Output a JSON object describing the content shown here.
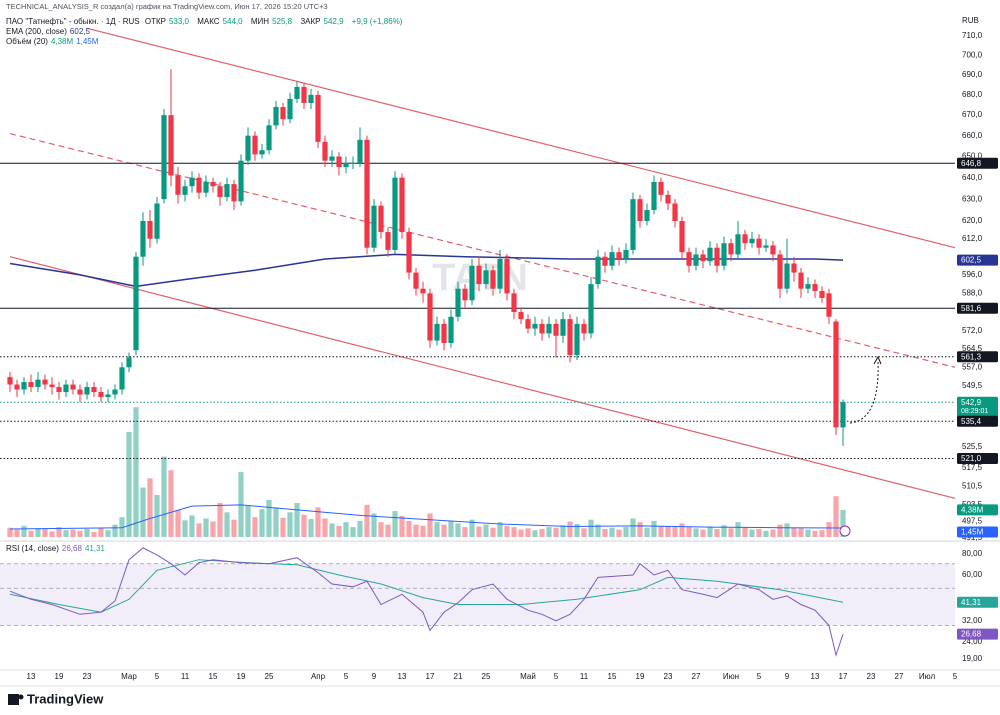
{
  "header": {
    "credit": "TECHNICAL_ANALYSIS_R создал(а) график на TradingView.com, Июн 17, 2026 15:20 UTC+3",
    "symbol": "ПАО \"Татнефть\" - обыкн. · 1Д · RUS",
    "ohlc": [
      {
        "label": "ОТКР",
        "value": "533,0"
      },
      {
        "label": "МАКС",
        "value": "544,0"
      },
      {
        "label": "МИН",
        "value": "525,8"
      },
      {
        "label": "ЗАКР",
        "value": "542,9"
      }
    ],
    "change": "+9,9 (+1,86%)",
    "currency": "RUB",
    "watermark": "TATN",
    "countdown": "08:29:01",
    "brand": "TradingView"
  },
  "chart_data": [
    {
      "type": "candlestick",
      "categories": [
        null,
        null,
        null,
        "13",
        null,
        null,
        null,
        "19",
        null,
        null,
        null,
        "23",
        null,
        null,
        null,
        null,
        null,
        "Мар",
        null,
        null,
        null,
        "5",
        null,
        null,
        null,
        "11",
        null,
        null,
        null,
        "15",
        null,
        null,
        null,
        "19",
        null,
        null,
        null,
        "25",
        null,
        null,
        null,
        null,
        null,
        null,
        "Апр",
        null,
        null,
        null,
        "5",
        null,
        null,
        null,
        "9",
        null,
        null,
        null,
        "13",
        null,
        null,
        null,
        "17",
        null,
        null,
        null,
        "21",
        null,
        null,
        null,
        "25",
        null,
        null,
        null,
        null,
        null,
        "Май",
        null,
        null,
        null,
        "5",
        null,
        null,
        null,
        "11",
        null,
        null,
        null,
        "15",
        null,
        null,
        null,
        "19",
        null,
        null,
        null,
        "23",
        null,
        null,
        null,
        "27",
        null,
        null,
        null,
        null,
        "Июн",
        null,
        null,
        null,
        "5",
        null,
        null,
        null,
        "9",
        null,
        null,
        null,
        "13",
        null,
        null,
        null,
        "17",
        null,
        null,
        null,
        "23",
        null,
        null,
        null,
        "27",
        null,
        null,
        null,
        "Июл",
        null,
        null,
        null,
        "5"
      ],
      "open": [
        553,
        550,
        548,
        551,
        549,
        552,
        550,
        549,
        547,
        550,
        548,
        546,
        549,
        547,
        545,
        546,
        548,
        557,
        564,
        604,
        620,
        612,
        630,
        670,
        641,
        632,
        636,
        640,
        633,
        638,
        636,
        631,
        637,
        629,
        648,
        660,
        651,
        653,
        665,
        674,
        668,
        678,
        684,
        676,
        680,
        657,
        648,
        650,
        645,
        647,
        647,
        658,
        608,
        627,
        615,
        607,
        640,
        615,
        597,
        590,
        588,
        568,
        575,
        567,
        578,
        590,
        585,
        600,
        592,
        598,
        590,
        603,
        588,
        580,
        577,
        573,
        575,
        571,
        575,
        570,
        577,
        562,
        575,
        571,
        592,
        604,
        600,
        606,
        603,
        607,
        630,
        620,
        625,
        638,
        632,
        628,
        620,
        606,
        600,
        605,
        602,
        608,
        600,
        610,
        605,
        614,
        610,
        612,
        608,
        609,
        605,
        590,
        601,
        597,
        590,
        592,
        589,
        588,
        576,
        533,
        null,
        null,
        null,
        null,
        null,
        null,
        null,
        null,
        null,
        null,
        null,
        null,
        null,
        null,
        null,
        null
      ],
      "high": [
        555,
        552,
        553,
        554,
        555,
        554,
        553,
        551,
        552,
        552,
        550,
        551,
        551,
        549,
        548,
        550,
        559,
        563,
        606,
        624,
        625,
        631,
        673,
        693,
        645,
        639,
        643,
        642,
        641,
        640,
        638,
        640,
        639,
        651,
        664,
        662,
        656,
        668,
        677,
        676,
        681,
        687,
        686,
        683,
        682,
        660,
        653,
        652,
        650,
        650,
        664,
        660,
        630,
        629,
        617,
        643,
        642,
        617,
        599,
        593,
        590,
        578,
        577,
        581,
        593,
        592,
        603,
        604,
        601,
        600,
        607,
        605,
        590,
        582,
        579,
        578,
        577,
        578,
        577,
        580,
        579,
        578,
        577,
        595,
        607,
        606,
        609,
        608,
        610,
        633,
        632,
        628,
        641,
        640,
        634,
        630,
        622,
        608,
        608,
        607,
        611,
        610,
        613,
        612,
        620,
        616,
        615,
        614,
        612,
        611,
        607,
        612,
        604,
        599,
        595,
        594,
        591,
        590,
        577,
        544,
        null,
        null,
        null,
        null,
        null,
        null,
        null,
        null,
        null,
        null,
        null,
        null,
        null,
        null,
        null,
        null
      ],
      "low": [
        547,
        545,
        546,
        547,
        547,
        548,
        546,
        544,
        545,
        546,
        543,
        544,
        545,
        543,
        543,
        544,
        546,
        555,
        562,
        600,
        608,
        610,
        628,
        636,
        628,
        629,
        633,
        630,
        631,
        633,
        627,
        629,
        625,
        627,
        646,
        648,
        649,
        651,
        663,
        665,
        666,
        676,
        673,
        673,
        654,
        645,
        645,
        641,
        642,
        644,
        645,
        605,
        606,
        612,
        604,
        605,
        612,
        594,
        587,
        584,
        565,
        566,
        564,
        565,
        576,
        582,
        583,
        589,
        590,
        587,
        588,
        585,
        577,
        575,
        571,
        570,
        568,
        569,
        561,
        567,
        559,
        560,
        568,
        569,
        590,
        597,
        598,
        600,
        601,
        605,
        617,
        618,
        623,
        629,
        625,
        617,
        603,
        597,
        598,
        599,
        600,
        597,
        598,
        602,
        603,
        607,
        608,
        605,
        606,
        602,
        586,
        588,
        593,
        586,
        588,
        586,
        584,
        575,
        530,
        525.8,
        null,
        null,
        null,
        null,
        null,
        null,
        null,
        null,
        null,
        null,
        null,
        null,
        null,
        null,
        null,
        null
      ],
      "close": [
        550,
        548,
        551,
        549,
        552,
        550,
        549,
        547,
        550,
        548,
        546,
        549,
        547,
        545,
        546,
        548,
        557,
        561,
        604,
        620,
        612,
        628,
        670,
        641,
        632,
        636,
        640,
        633,
        638,
        636,
        631,
        637,
        629,
        648,
        660,
        651,
        653,
        665,
        674,
        668,
        678,
        684,
        676,
        680,
        657,
        648,
        650,
        645,
        647,
        647,
        658,
        608,
        627,
        615,
        607,
        640,
        615,
        597,
        590,
        588,
        568,
        575,
        567,
        578,
        590,
        585,
        600,
        592,
        598,
        590,
        603,
        588,
        580,
        577,
        573,
        575,
        571,
        575,
        570,
        577,
        562,
        575,
        571,
        592,
        604,
        600,
        606,
        603,
        607,
        630,
        620,
        625,
        638,
        632,
        628,
        620,
        606,
        600,
        605,
        602,
        608,
        600,
        610,
        605,
        614,
        610,
        612,
        608,
        609,
        605,
        590,
        601,
        597,
        590,
        592,
        589,
        586,
        578,
        533,
        542.9,
        null,
        null,
        null,
        null,
        null,
        null,
        null,
        null,
        null,
        null,
        null,
        null,
        null,
        null,
        null,
        null
      ],
      "up_color": "#089981",
      "down_color": "#f23645",
      "ylim": [
        489,
        721
      ],
      "log_scale": true,
      "grid": false,
      "yticks": [
        {
          "value": 710,
          "label": "710,0"
        },
        {
          "value": 700,
          "label": "700,0"
        },
        {
          "value": 690,
          "label": "690,0"
        },
        {
          "value": 680,
          "label": "680,0"
        },
        {
          "value": 670,
          "label": "670,0"
        },
        {
          "value": 660,
          "label": "660,0"
        },
        {
          "value": 650,
          "label": "650,0"
        },
        {
          "value": 640,
          "label": "640,0"
        },
        {
          "value": 630,
          "label": "630,0"
        },
        {
          "value": 620,
          "label": "620,0"
        },
        {
          "value": 612,
          "label": "612,0"
        },
        {
          "value": 596,
          "label": "596,0"
        },
        {
          "value": 588,
          "label": "588,0"
        },
        {
          "value": 572,
          "label": "572,0"
        },
        {
          "value": 564.5,
          "label": "564,5"
        },
        {
          "value": 557,
          "label": "557,0"
        },
        {
          "value": 549.5,
          "label": "549,5"
        },
        {
          "value": 525.5,
          "label": "525,5"
        },
        {
          "value": 517.5,
          "label": "517,5"
        },
        {
          "value": 510.5,
          "label": "510,5"
        },
        {
          "value": 503.5,
          "label": "503,5"
        },
        {
          "value": 497.5,
          "label": "497,5"
        },
        {
          "value": 491.5,
          "label": "491,5"
        }
      ],
      "levels": [
        {
          "value": 646.8,
          "label": "646,8",
          "color": "#131722",
          "style": "solid"
        },
        {
          "value": 581.6,
          "label": "581,6",
          "color": "#131722",
          "style": "solid"
        },
        {
          "value": 561.3,
          "label": "561,3",
          "color": "#131722",
          "style": "dotted"
        },
        {
          "value": 542.9,
          "label": "542,9",
          "color": "#089981",
          "style": "dotted"
        },
        {
          "value": 535.4,
          "label": "535,4",
          "color": "#131722",
          "style": "dotted"
        },
        {
          "value": 521.0,
          "label": "521,0",
          "color": "#131722",
          "style": "dotted"
        }
      ],
      "trendlines": [
        {
          "x": [
            11,
            135
          ],
          "values": [
            714,
            608
          ],
          "color": "#e0606a",
          "style": "solid"
        },
        {
          "x": [
            0,
            135
          ],
          "values": [
            604,
            506
          ],
          "color": "#e0606a",
          "style": "solid"
        },
        {
          "x": [
            0,
            135
          ],
          "values": [
            661,
            557
          ],
          "color": "#e0606a",
          "style": "dashed"
        }
      ],
      "ema": {
        "name": "EMA (200, close)",
        "color": "#283593",
        "value_label": "602,5",
        "x": [
          0,
          10,
          18,
          25,
          35,
          45,
          55,
          65,
          80,
          95,
          105,
          115,
          119
        ],
        "values": [
          601,
          596,
          591,
          594,
          598,
          603,
          605,
          604,
          603,
          603,
          603,
          603,
          602.5
        ]
      },
      "volume": {
        "name": "Объём (20)",
        "vlim": [
          0,
          22
        ],
        "value_label": "4,38M",
        "values": [
          1.5,
          1.2,
          1.8,
          1.0,
          1.4,
          1.3,
          0.9,
          1.6,
          1.1,
          1.2,
          1.0,
          1.3,
          0.8,
          1.5,
          1.1,
          2.0,
          3.2,
          17,
          21,
          8,
          9.5,
          6.8,
          13,
          10.8,
          4.4,
          2.7,
          3.5,
          2.2,
          3.0,
          2.5,
          5.5,
          4.0,
          2.8,
          10.5,
          5.0,
          3.2,
          4.5,
          6.0,
          4.8,
          3.1,
          4.0,
          5.5,
          3.6,
          2.9,
          4.8,
          3.0,
          2.2,
          1.8,
          2.4,
          1.6,
          2.6,
          5.2,
          3.8,
          2.4,
          2.0,
          4.2,
          3.4,
          2.6,
          2.0,
          1.8,
          3.8,
          2.4,
          2.0,
          2.6,
          2.2,
          1.6,
          2.8,
          1.7,
          2.0,
          1.5,
          2.4,
          1.8,
          1.6,
          1.2,
          1.4,
          1.1,
          1.3,
          1.6,
          1.5,
          1.9,
          2.5,
          2.1,
          1.4,
          2.8,
          2.0,
          1.3,
          1.5,
          1.2,
          1.6,
          3.0,
          2.4,
          1.5,
          2.6,
          1.8,
          1.7,
          1.6,
          2.2,
          1.6,
          1.4,
          1.2,
          1.7,
          1.3,
          1.9,
          1.4,
          2.4,
          1.6,
          1.2,
          1.3,
          1.0,
          1.2,
          2.0,
          2.2,
          1.5,
          1.4,
          1.2,
          1.0,
          1.1,
          2.4,
          6.6,
          4.38,
          null,
          null,
          null,
          null,
          null,
          null,
          null,
          null,
          null,
          null,
          null,
          null,
          null,
          null,
          null,
          null
        ]
      },
      "volume_ma": {
        "color": "#2962ff",
        "value_label": "1,45M",
        "x": [
          0,
          16,
          20,
          26,
          33,
          40,
          50,
          60,
          70,
          80,
          90,
          100,
          110,
          119
        ],
        "values": [
          1.3,
          1.5,
          3.0,
          5.0,
          5.2,
          4.5,
          3.5,
          2.8,
          2.1,
          1.7,
          1.8,
          1.6,
          1.5,
          1.45
        ]
      }
    },
    {
      "type": "line",
      "ylim": [
        16.3,
        90.5
      ],
      "log_scale": true,
      "yticks": [
        {
          "value": 80,
          "label": "80,00"
        },
        {
          "value": 60,
          "label": "60,00"
        },
        {
          "value": 32,
          "label": "32,00"
        },
        {
          "value": 24,
          "label": "24,00"
        },
        {
          "value": 19,
          "label": "19,00"
        }
      ],
      "levels": [
        70,
        50,
        30
      ],
      "band": [
        30,
        70
      ],
      "band_color": "#7e57c2",
      "series": [
        {
          "name": "RSI (14, close)",
          "color": "#7e57c2",
          "value_label": "26,68",
          "x": [
            0,
            3,
            6,
            10,
            13,
            15,
            17,
            19,
            21,
            23,
            25,
            27,
            29,
            33,
            37,
            41,
            44,
            46,
            49,
            51,
            53,
            56,
            59,
            60,
            62,
            64,
            66,
            69,
            71,
            74,
            76,
            78,
            80,
            82,
            84,
            89,
            90,
            92,
            94,
            96,
            99,
            101,
            104,
            107,
            109,
            111,
            113,
            115,
            117,
            118,
            119
          ],
          "values": [
            48,
            43,
            40,
            35,
            36,
            42,
            74,
            87,
            79,
            70,
            60,
            71,
            74,
            71,
            70,
            76,
            62,
            53,
            51,
            55,
            40,
            46,
            36,
            28,
            36,
            41,
            49,
            53,
            43,
            37,
            35,
            32,
            35,
            43,
            58,
            60,
            70,
            60,
            64,
            49,
            46,
            44,
            53,
            49,
            43,
            45,
            40,
            37,
            30,
            20,
            26.68
          ]
        },
        {
          "color": "#26a69a",
          "value_label": "41,31",
          "x": [
            0,
            7,
            13,
            17,
            21,
            27,
            34,
            41,
            47,
            53,
            59,
            64,
            73,
            81,
            90,
            94,
            101,
            110,
            119
          ],
          "values": [
            46,
            40,
            36,
            43,
            64,
            74,
            71,
            69,
            60,
            53,
            44,
            40,
            40,
            43,
            49,
            58,
            55,
            49,
            41.31
          ]
        }
      ]
    }
  ]
}
